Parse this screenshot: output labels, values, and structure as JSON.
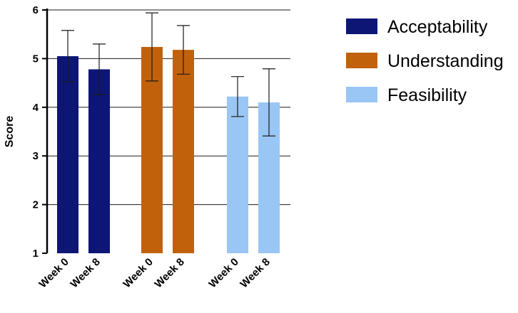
{
  "chart_data": {
    "type": "bar",
    "title": "",
    "xlabel": "",
    "ylabel": "Score",
    "ylim": [
      1,
      6
    ],
    "yticks": [
      "1",
      "2",
      "3",
      "4",
      "5",
      "6"
    ],
    "grid": true,
    "legend_position": "right",
    "categories": [
      "Week 0",
      "Week 8"
    ],
    "series": [
      {
        "name": "Acceptability",
        "color": "#0d1675",
        "values": [
          5.05,
          4.78
        ],
        "errors": [
          0.53,
          0.52
        ]
      },
      {
        "name": "Understanding",
        "color": "#c1610c",
        "values": [
          5.24,
          5.18
        ],
        "errors": [
          0.7,
          0.5
        ]
      },
      {
        "name": "Feasibility",
        "color": "#99c6f5",
        "values": [
          4.22,
          4.1
        ],
        "errors": [
          0.41,
          0.69
        ]
      }
    ]
  }
}
